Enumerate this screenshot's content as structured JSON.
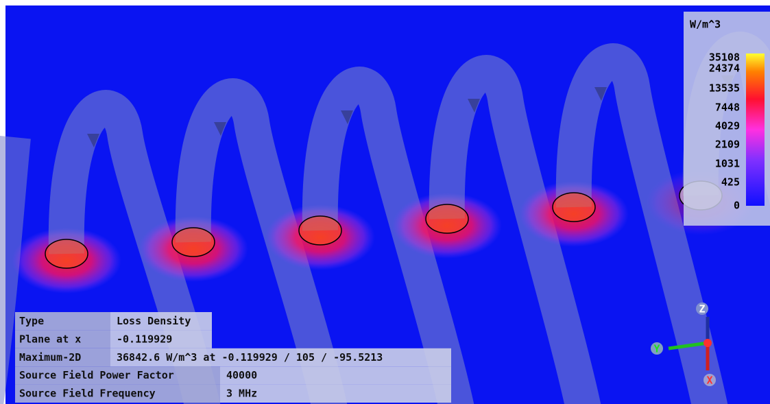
{
  "legend": {
    "unit": "W/m^3",
    "labels": [
      "35108",
      "24374",
      "13535",
      "7448",
      "4029",
      "2109",
      "1031",
      "425",
      "0"
    ]
  },
  "info": {
    "rows": [
      [
        "Type",
        "Loss Density"
      ],
      [
        "Plane at x",
        "-0.119929"
      ],
      [
        "Maximum-2D",
        "36842.6 W/m^3 at -0.119929 / 105 / -95.5213"
      ],
      [
        "Source Field Power Factor",
        "40000"
      ],
      [
        "Source Field Frequency",
        "3 MHz"
      ]
    ]
  },
  "axes": {
    "z": "Z",
    "y": "Y",
    "x": "X"
  }
}
